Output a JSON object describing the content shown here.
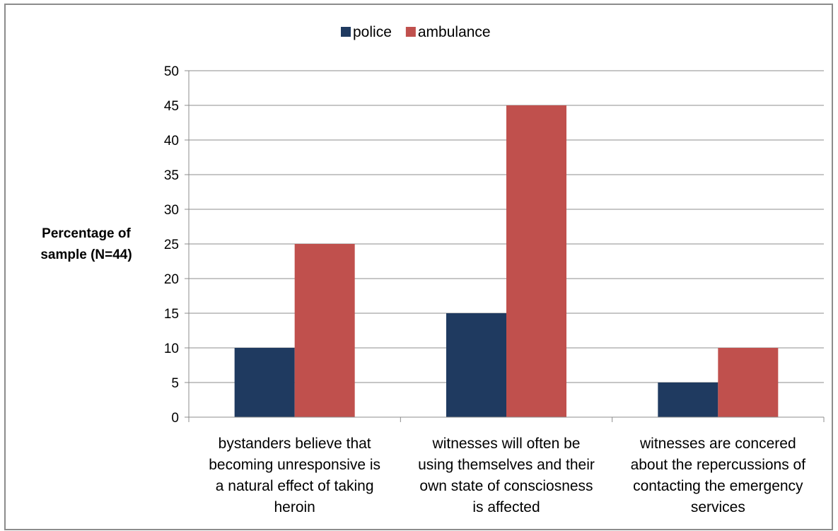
{
  "chart_data": {
    "type": "bar",
    "title": "",
    "xlabel": "",
    "ylabel_lines": [
      "Percentage of",
      "sample (N=44)"
    ],
    "ylim": [
      0,
      50
    ],
    "ytick_step": 5,
    "yticks": [
      "0",
      "5",
      "10",
      "15",
      "20",
      "25",
      "30",
      "35",
      "40",
      "45",
      "50"
    ],
    "grid": true,
    "legend_position": "top-center",
    "categories": [
      [
        "bystanders believe that",
        "becoming unresponsive is",
        "a natural effect of taking",
        "heroin"
      ],
      [
        "witnesses will often be",
        "using themselves and their",
        "own state of consciosness",
        "is affected"
      ],
      [
        "witnesses are concered",
        "about the repercussions of",
        "contacting the emergency",
        "services"
      ]
    ],
    "series": [
      {
        "name": "police",
        "values": [
          10,
          15,
          5
        ],
        "color": "#1f3a60"
      },
      {
        "name": "ambulance",
        "values": [
          25,
          45,
          10
        ],
        "color": "#c0504d"
      }
    ]
  }
}
